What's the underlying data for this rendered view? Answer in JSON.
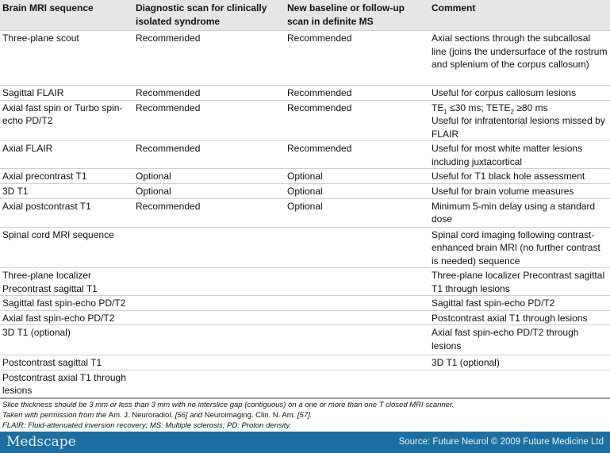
{
  "table": {
    "headers": [
      "Brain MRI sequence",
      "Diagnostic scan for clinically isolated syndrome",
      "New baseline or follow-up scan in definite MS",
      "Comment"
    ],
    "rows": [
      {
        "seq": "Three-plane scout",
        "diag": "Recommended",
        "follow": "Recommended",
        "comment": "Axial sections through the subcallosal line (joins the undersurface of the rostrum and splenium of the corpus callosum)"
      },
      {
        "seq": "Sagittal FLAIR",
        "diag": "Recommended",
        "follow": "Recommended",
        "comment": "Useful for corpus callosum lesions"
      },
      {
        "seq": "Axial fast spin or Turbo spin-echo PD/T2",
        "diag": "Recommended",
        "follow": "Recommended",
        "comment_te1": "TE",
        "comment_te1_sub": "1",
        "comment_te1_val": " ≤30 ms; TE",
        "comment_te2_sub": "2",
        "comment_te2_val": " ≥80 ms",
        "comment": "Useful for infratentorial lesions missed by FLAIR"
      },
      {
        "seq": "Axial FLAIR",
        "diag": "Recommended",
        "follow": "Recommended",
        "comment": "Useful for most white matter lesions including juxtacortical"
      },
      {
        "seq": "Axial precontrast T1",
        "diag": "Optional",
        "follow": "Optional",
        "comment": "Useful for T1 black hole assessment"
      },
      {
        "seq": "3D T1",
        "diag": "Optional",
        "follow": "Optional",
        "comment": "Useful for brain volume measures"
      },
      {
        "seq": "Axial postcontrast T1",
        "diag": "Recommended",
        "follow": "Optional",
        "comment": "Minimum 5-min delay using a standard dose"
      },
      {
        "seq": "Spinal cord MRI sequence",
        "diag": "",
        "follow": "",
        "comment": "Spinal cord imaging following contrast-enhanced brain MRI (no further contrast is needed) sequence"
      },
      {
        "seq": "Three-plane localizer Precontrast sagittal T1",
        "diag": "",
        "follow": "",
        "comment": "Three-plane localizer Precontrast sagittal T1 through lesions"
      },
      {
        "seq": "Sagittal fast spin-echo PD/T2",
        "diag": "",
        "follow": "",
        "comment": "Sagittal fast spin-echo PD/T2"
      },
      {
        "seq": "Axial fast spin-echo PD/T2",
        "diag": "",
        "follow": "",
        "comment": "Postcontrast axial T1 through lesions"
      },
      {
        "seq": "3D T1 (optional)",
        "diag": "",
        "follow": "",
        "comment": "Axial fast spin-echo PD/T2 through lesions"
      },
      {
        "seq": "Postcontrast sagittal T1",
        "diag": "",
        "follow": "",
        "comment": "3D T1 (optional)"
      },
      {
        "seq": "Postcontrast axial T1 through lesions",
        "diag": "",
        "follow": "",
        "comment": ""
      }
    ]
  },
  "notes": [
    "Slice thickness should be 3 mm or less than 3 mm with no interslice gap (contiguous) on a one or more than one T closed MRI scanner.",
    "Taken with permission from the ",
    "Am. J. Neuroradiol.",
    " [56] and ",
    "Neuroimaging. Clin. N. Am.",
    " [57].",
    "FLAIR: Fluid-attenuated inversion recovery; MS: Multiple sclerosis; PD: Proton density."
  ],
  "footer": {
    "logo": "Medscape",
    "source": "Source: Future Neurol © 2009 Future Medicine Ltd",
    "bg_color": "#1b6fa2"
  }
}
